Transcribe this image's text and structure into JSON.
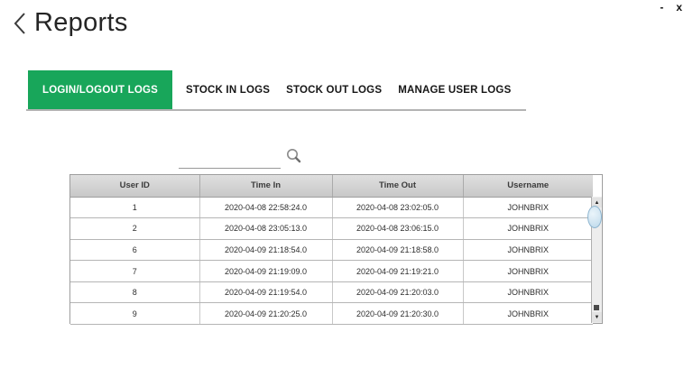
{
  "window": {
    "controls": {
      "minimize": "-",
      "close": "x"
    }
  },
  "header": {
    "title": "Reports"
  },
  "tabs": [
    {
      "label": "LOGIN/LOGOUT LOGS",
      "active": true
    },
    {
      "label": "STOCK IN LOGS",
      "active": false
    },
    {
      "label": "STOCK OUT LOGS",
      "active": false
    },
    {
      "label": "MANAGE USER LOGS",
      "active": false
    }
  ],
  "search": {
    "value": ""
  },
  "table": {
    "columns": [
      "User ID",
      "Time In",
      "Time Out",
      "Username"
    ],
    "rows": [
      [
        "1",
        "2020-04-08 22:58:24.0",
        "2020-04-08 23:02:05.0",
        "JOHNBRIX"
      ],
      [
        "2",
        "2020-04-08 23:05:13.0",
        "2020-04-08 23:06:15.0",
        "JOHNBRIX"
      ],
      [
        "6",
        "2020-04-09 21:18:54.0",
        "2020-04-09 21:18:58.0",
        "JOHNBRIX"
      ],
      [
        "7",
        "2020-04-09 21:19:09.0",
        "2020-04-09 21:19:21.0",
        "JOHNBRIX"
      ],
      [
        "8",
        "2020-04-09 21:19:54.0",
        "2020-04-09 21:20:03.0",
        "JOHNBRIX"
      ],
      [
        "9",
        "2020-04-09 21:20:25.0",
        "2020-04-09 21:20:30.0",
        "JOHNBRIX"
      ]
    ]
  },
  "icons": {
    "back": "back-chevron",
    "search": "magnifier",
    "scroll_up": "▲",
    "scroll_down": "▼"
  },
  "colors": {
    "accent_green": "#18a65a",
    "tab_underline": "#b3b3b3",
    "scrollbar_thumb_blue": "#bdd9eb"
  }
}
